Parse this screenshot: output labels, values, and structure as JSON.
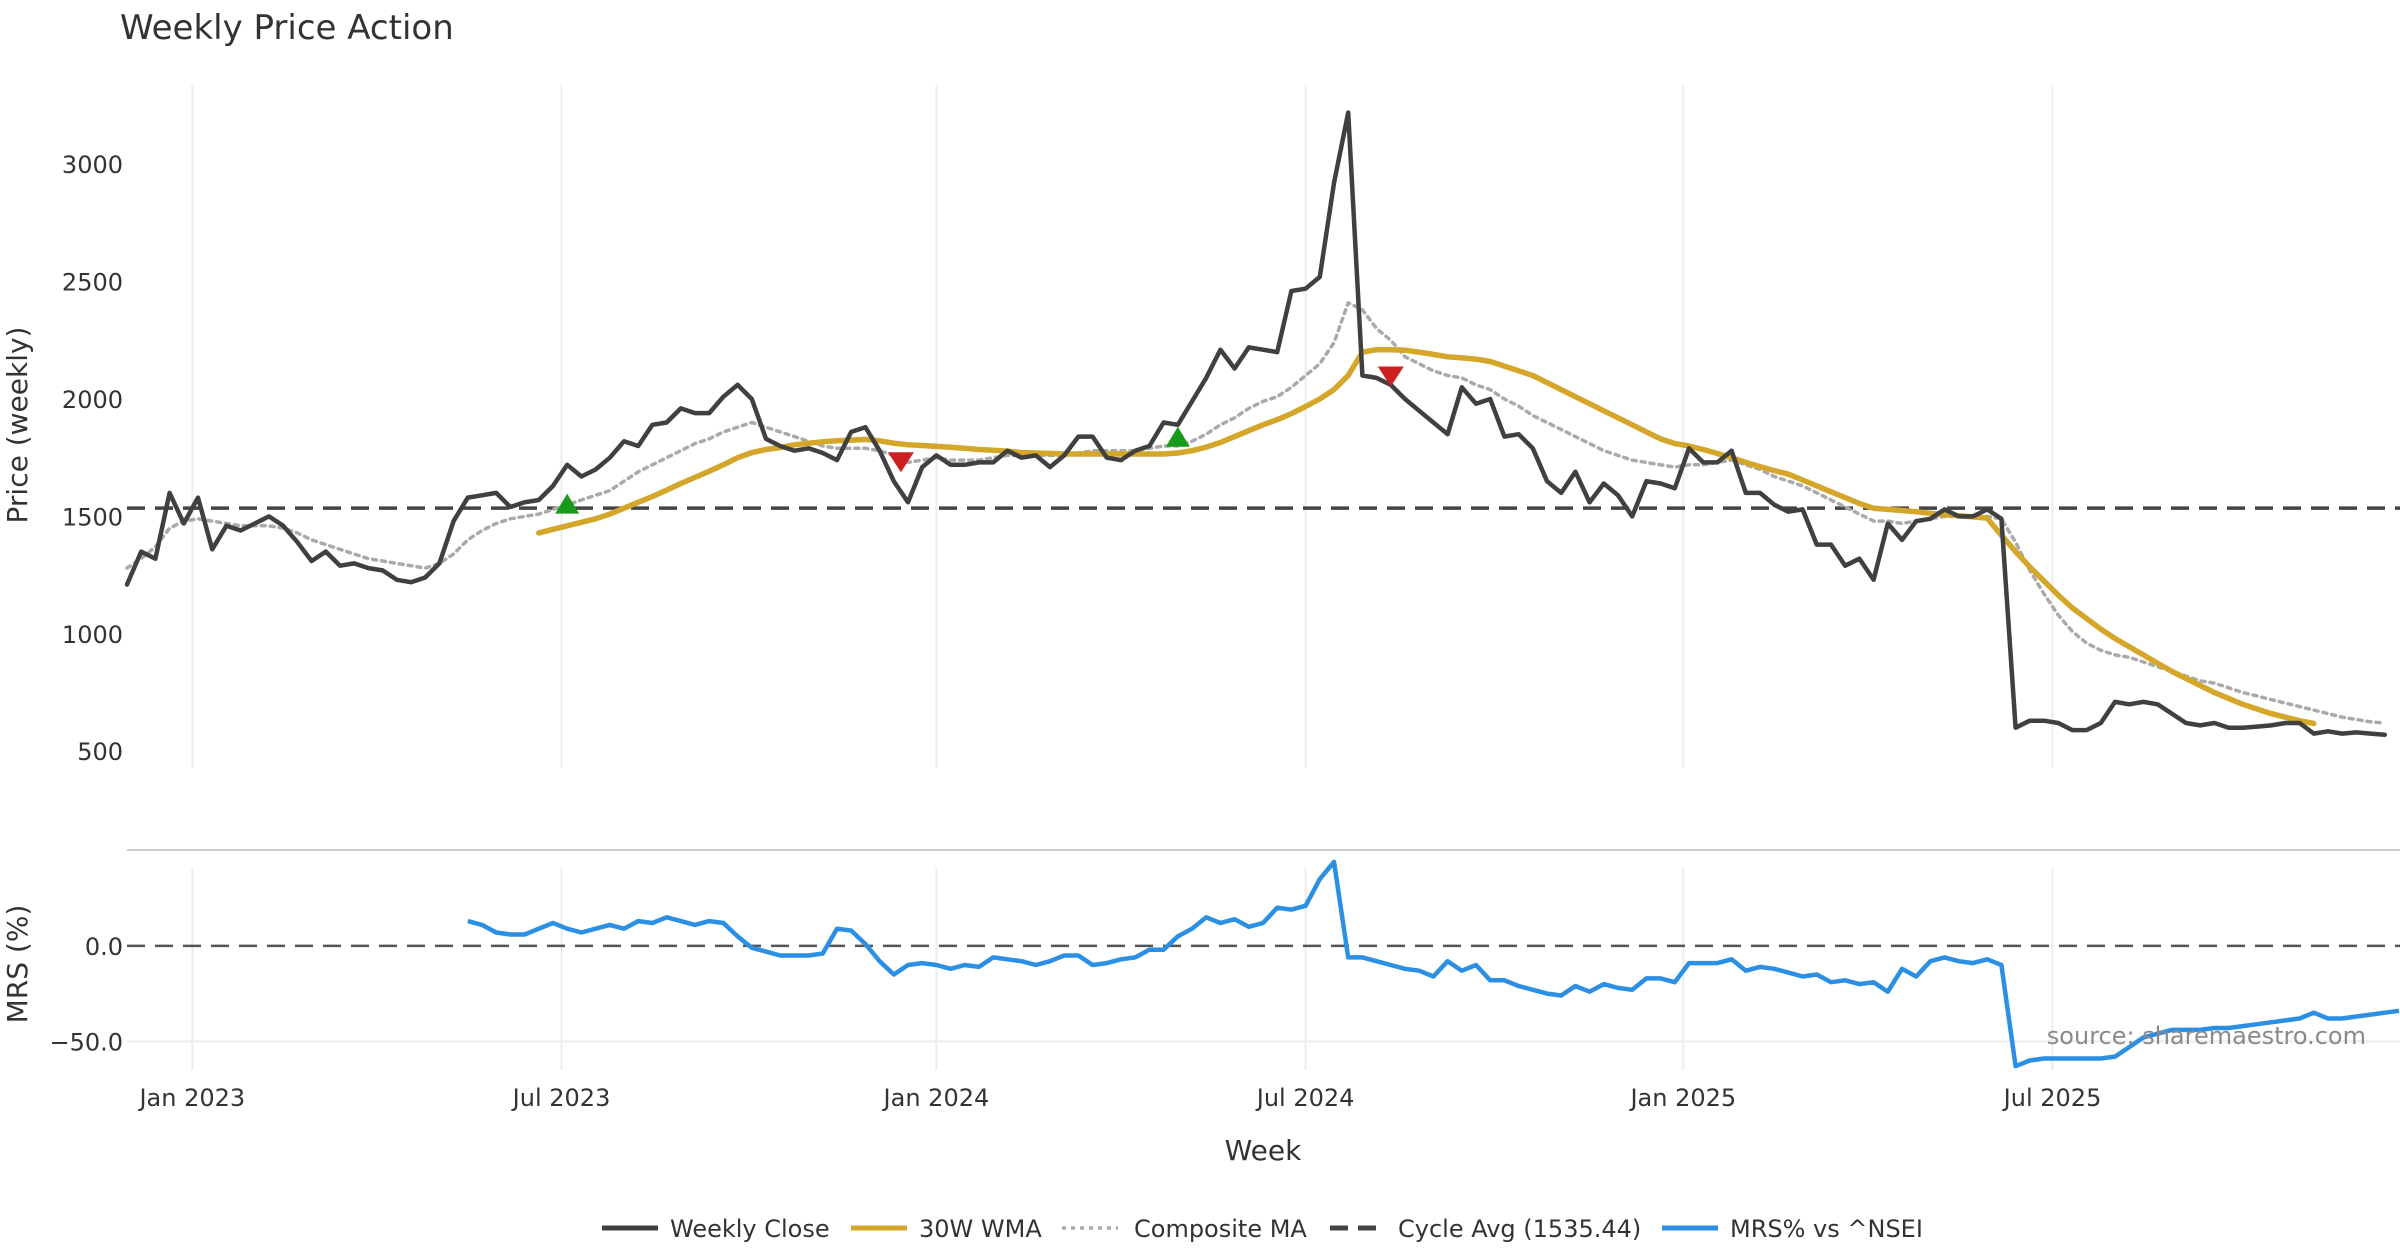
{
  "chart_data": {
    "type": "line",
    "title": "Weekly Price Action",
    "xlabel": "Week",
    "watermark": "source: sharemaestro.com",
    "x_tick_labels": [
      "Jan 2023",
      "Jul 2023",
      "Jan 2024",
      "Jul 2024",
      "Jan 2025",
      "Jul 2025"
    ],
    "x_tick_weeks": [
      4.6,
      30.6,
      57,
      83,
      109.6,
      135.6
    ],
    "colors": {
      "close": "#404040",
      "wma": "#d4a62a",
      "composite": "#aaaaaa",
      "cycle": "#444444",
      "mrs": "#2b8fe3",
      "up": "#1a9a1a",
      "down": "#cc1f1f"
    },
    "price_panel": {
      "ylabel": "Price (weekly)",
      "ylim": [
        420,
        3380
      ],
      "yticks": [
        500,
        1000,
        1500,
        2000,
        2500,
        3000
      ],
      "cycle_avg": 1535.44,
      "series": [
        {
          "name": "Weekly Close",
          "key": "close",
          "values": [
            1210,
            1350,
            1320,
            1600,
            1470,
            1580,
            1360,
            1460,
            1440,
            1470,
            1500,
            1460,
            1390,
            1310,
            1350,
            1290,
            1300,
            1280,
            1270,
            1230,
            1220,
            1240,
            1300,
            1480,
            1580,
            1590,
            1600,
            1540,
            1560,
            1570,
            1630,
            1720,
            1670,
            1700,
            1750,
            1820,
            1800,
            1890,
            1900,
            1960,
            1940,
            1940,
            2010,
            2060,
            2000,
            1830,
            1800,
            1780,
            1790,
            1770,
            1740,
            1860,
            1880,
            1780,
            1650,
            1560,
            1710,
            1760,
            1720,
            1720,
            1730,
            1730,
            1780,
            1750,
            1760,
            1710,
            1760,
            1840,
            1840,
            1750,
            1740,
            1780,
            1800,
            1900,
            1890,
            1990,
            2090,
            2210,
            2130,
            2220,
            2210,
            2200,
            2460,
            2470,
            2520,
            2920,
            3220,
            2100,
            2090,
            2060,
            2000,
            1950,
            1900,
            1850,
            2050,
            1980,
            2000,
            1840,
            1850,
            1790,
            1650,
            1600,
            1690,
            1560,
            1640,
            1590,
            1500,
            1650,
            1640,
            1620,
            1790,
            1730,
            1730,
            1780,
            1600,
            1600,
            1550,
            1520,
            1530,
            1380,
            1380,
            1290,
            1320,
            1230,
            1470,
            1400,
            1480,
            1490,
            1530,
            1500,
            1500,
            1530,
            1490,
            600,
            630,
            630,
            620,
            590,
            590,
            620,
            710,
            700,
            710,
            700,
            660,
            620,
            610,
            620,
            600,
            600,
            605,
            610,
            620,
            620,
            575,
            585,
            575,
            580,
            575,
            570
          ]
        },
        {
          "name": "30W WMA",
          "key": "wma",
          "start": 29,
          "values": [
            1430,
            1445,
            1460,
            1475,
            1490,
            1510,
            1535,
            1560,
            1585,
            1612,
            1640,
            1666,
            1692,
            1720,
            1750,
            1772,
            1785,
            1793,
            1805,
            1812,
            1818,
            1822,
            1825,
            1828,
            1822,
            1812,
            1805,
            1802,
            1798,
            1795,
            1790,
            1785,
            1782,
            1778,
            1772,
            1770,
            1768,
            1766,
            1766,
            1766,
            1766,
            1766,
            1766,
            1766,
            1766,
            1770,
            1780,
            1795,
            1815,
            1840,
            1865,
            1890,
            1912,
            1938,
            1968,
            2000,
            2040,
            2100,
            2200,
            2210,
            2210,
            2208,
            2200,
            2190,
            2180,
            2175,
            2170,
            2160,
            2140,
            2120,
            2100,
            2070,
            2040,
            2010,
            1980,
            1950,
            1920,
            1890,
            1860,
            1830,
            1810,
            1800,
            1785,
            1768,
            1750,
            1730,
            1712,
            1695,
            1680,
            1655,
            1630,
            1605,
            1580,
            1555,
            1535,
            1530,
            1525,
            1520,
            1513,
            1508,
            1503,
            1498,
            1493,
            1420,
            1350,
            1285,
            1225,
            1165,
            1110,
            1065,
            1020,
            980,
            945,
            910,
            875,
            840,
            810,
            780,
            750,
            725,
            700,
            680,
            660,
            645,
            630,
            618
          ]
        },
        {
          "name": "Composite MA",
          "key": "composite",
          "values": [
            1280,
            1320,
            1370,
            1450,
            1480,
            1490,
            1480,
            1470,
            1460,
            1460,
            1460,
            1450,
            1430,
            1400,
            1380,
            1360,
            1340,
            1320,
            1310,
            1300,
            1290,
            1280,
            1300,
            1340,
            1400,
            1440,
            1470,
            1490,
            1500,
            1510,
            1530,
            1550,
            1570,
            1590,
            1610,
            1650,
            1690,
            1720,
            1750,
            1780,
            1810,
            1830,
            1860,
            1880,
            1900,
            1880,
            1860,
            1840,
            1820,
            1800,
            1790,
            1790,
            1790,
            1780,
            1760,
            1730,
            1740,
            1750,
            1740,
            1740,
            1740,
            1750,
            1760,
            1760,
            1760,
            1760,
            1760,
            1770,
            1780,
            1780,
            1780,
            1780,
            1790,
            1800,
            1800,
            1820,
            1850,
            1890,
            1920,
            1960,
            1990,
            2010,
            2050,
            2100,
            2150,
            2240,
            2410,
            2380,
            2300,
            2250,
            2180,
            2150,
            2120,
            2100,
            2090,
            2060,
            2040,
            2000,
            1970,
            1930,
            1900,
            1870,
            1840,
            1810,
            1780,
            1760,
            1740,
            1730,
            1720,
            1710,
            1720,
            1720,
            1730,
            1740,
            1720,
            1700,
            1670,
            1650,
            1630,
            1600,
            1570,
            1540,
            1510,
            1480,
            1480,
            1470,
            1480,
            1490,
            1500,
            1500,
            1500,
            1500,
            1490,
            1390,
            1270,
            1170,
            1080,
            1010,
            960,
            930,
            910,
            900,
            880,
            860,
            840,
            820,
            800,
            790,
            770,
            750,
            735,
            720,
            705,
            690,
            675,
            660,
            645,
            635,
            625,
            620
          ]
        }
      ],
      "markers": [
        {
          "type": "up",
          "week": 31,
          "value": 1550
        },
        {
          "type": "down",
          "week": 54.5,
          "value": 1735
        },
        {
          "type": "up",
          "week": 74,
          "value": 1835
        },
        {
          "type": "down",
          "week": 89,
          "value": 2100
        }
      ]
    },
    "mrs_panel": {
      "ylabel": "MRS (%)",
      "ylim": [
        -65,
        45
      ],
      "yticks": [
        0,
        -50
      ],
      "ytick_labels": [
        "0.0",
        "−50.0"
      ],
      "start": 24,
      "series": [
        {
          "name": "MRS% vs ^NSEI",
          "key": "mrs",
          "values": [
            13,
            11,
            7,
            6,
            6,
            9,
            12,
            9,
            7,
            9,
            11,
            9,
            13,
            12,
            15,
            13,
            11,
            13,
            12,
            5,
            -1,
            -3,
            -5,
            -5,
            -5,
            -4,
            9,
            8,
            1,
            -8,
            -15,
            -10,
            -9,
            -10,
            -12,
            -10,
            -11,
            -6,
            -7,
            -8,
            -10,
            -8,
            -5,
            -5,
            -10,
            -9,
            -7,
            -6,
            -2,
            -2,
            5,
            9,
            15,
            12,
            14,
            10,
            12,
            20,
            19,
            21,
            35,
            44,
            -6,
            -6,
            -8,
            -10,
            -12,
            -13,
            -16,
            -8,
            -13,
            -10,
            -18,
            -18,
            -21,
            -23,
            -25,
            -26,
            -21,
            -24,
            -20,
            -22,
            -23,
            -17,
            -17,
            -19,
            -9,
            -9,
            -9,
            -7,
            -13,
            -11,
            -12,
            -14,
            -16,
            -15,
            -19,
            -18,
            -20,
            -19,
            -24,
            -12,
            -16,
            -8,
            -6,
            -8,
            -9,
            -7,
            -10,
            -63,
            -60,
            -59,
            -59,
            -59,
            -59,
            -59,
            -58,
            -53,
            -48,
            -46,
            -44,
            -44,
            -44,
            -43,
            -43,
            -42,
            -41,
            -40,
            -39,
            -38,
            -35,
            -38,
            -38,
            -37,
            -36,
            -35,
            -34
          ]
        }
      ]
    },
    "legend": [
      {
        "label": "Weekly Close",
        "key": "close",
        "style": "solid"
      },
      {
        "label": "30W WMA",
        "key": "wma",
        "style": "solid"
      },
      {
        "label": "Composite MA",
        "key": "composite",
        "style": "dotted"
      },
      {
        "label": "Cycle Avg (1535.44)",
        "key": "cycle",
        "style": "dashed"
      },
      {
        "label": "MRS% vs ^NSEI",
        "key": "mrs",
        "style": "solid"
      }
    ]
  }
}
